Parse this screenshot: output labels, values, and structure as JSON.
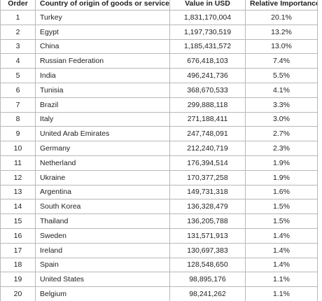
{
  "table": {
    "header": [
      "Order",
      "Country of origin of goods or services",
      "Value in USD",
      "Relative Importance %"
    ],
    "rows": [
      [
        "1",
        "Turkey",
        "1,831,170,004",
        "20.1%"
      ],
      [
        "2",
        "Egypt",
        "1,197,730,519",
        "13.2%"
      ],
      [
        "3",
        "China",
        "1,185,431,572",
        "13.0%"
      ],
      [
        "4",
        "Russian Federation",
        "676,418,103",
        "7.4%"
      ],
      [
        "5",
        "India",
        "496,241,736",
        "5.5%"
      ],
      [
        "6",
        "Tunisia",
        "368,670,533",
        "4.1%"
      ],
      [
        "7",
        "Brazil",
        "299,888,118",
        "3.3%"
      ],
      [
        "8",
        "Italy",
        "271,188,411",
        "3.0%"
      ],
      [
        "9",
        "United Arab Emirates",
        "247,748,091",
        "2.7%"
      ],
      [
        "10",
        "Germany",
        "212,240,719",
        "2.3%"
      ],
      [
        "11",
        "Netherland",
        "176,394,514",
        "1.9%"
      ],
      [
        "12",
        "Ukraine",
        "170,377,258",
        "1.9%"
      ],
      [
        "13",
        "Argentina",
        "149,731,318",
        "1.6%"
      ],
      [
        "14",
        "South Korea",
        "136,328,479",
        "1.5%"
      ],
      [
        "15",
        "Thailand",
        "136,205,788",
        "1.5%"
      ],
      [
        "16",
        "Sweden",
        "131,571,913",
        "1.4%"
      ],
      [
        "17",
        "Ireland",
        "130,697,383",
        "1.4%"
      ],
      [
        "18",
        "Spain",
        "128,548,650",
        "1.4%"
      ],
      [
        "19",
        "United States",
        "98,895,176",
        "1.1%"
      ],
      [
        "20",
        "Belgium",
        "98,241,262",
        "1.1%"
      ]
    ]
  }
}
